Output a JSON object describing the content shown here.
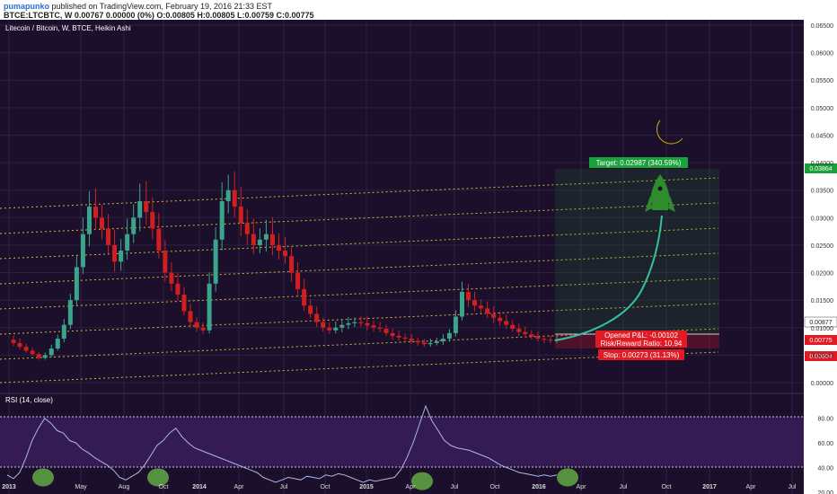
{
  "header": {
    "author": "pumapunko",
    "published": "published on TradingView.com, February 19, 2016 21:33 EST",
    "ohlc_line": "BTCE:LTCBTC, W  0.00767 0.00000 (0%)  O:0.00805 H:0.00805 L:0.00759 C:0.00775"
  },
  "chart": {
    "symbol_label": "Litecoin / Bitcoin, W, BTCE, Heikin Ashi",
    "rsi_label": "RSI (14, close)",
    "target_label": "Target: 0.02987 (340.59%)",
    "pnl_label": "Opened P&L: -0.00102",
    "rr_label": "Risk/Reward Ratio: 10.94",
    "stop_label": "Stop: 0.00273 (31.13%)",
    "price_tags": [
      "0.03864",
      "0.00877",
      "0.00775",
      "0.00604"
    ],
    "moon_icon": "crescent-moon-icon",
    "rocket_icon": "rocket-icon"
  },
  "colors": {
    "bg": "#1c0f2b",
    "up": "#3aa58a",
    "down": "#d11f1f",
    "channel": "#d4b83a",
    "target": "#1aa13c",
    "stop": "#e01b24",
    "arrow": "#35c0a0",
    "moon": "#f2e500",
    "rocket": "#2e8b2e"
  },
  "chart_data": [
    {
      "type": "candlestick",
      "title": "Litecoin / Bitcoin, W, BTCE, Heikin Ashi",
      "x_ticks": [
        "2013",
        "May",
        "Aug",
        "Oct",
        "2014",
        "Apr",
        "Jul",
        "Oct",
        "2015",
        "Apr",
        "Jul",
        "Oct",
        "2016",
        "Apr",
        "Jul",
        "Oct",
        "2017",
        "Apr",
        "Jul"
      ],
      "y_ticks": [
        0.065,
        0.06,
        0.055,
        0.05,
        0.045,
        0.04,
        0.035,
        0.03,
        0.025,
        0.02,
        0.015,
        0.01,
        0.005,
        0.0
      ],
      "ylim": [
        0,
        0.065
      ],
      "close_path": [
        0.0078,
        0.0072,
        0.0065,
        0.0058,
        0.0052,
        0.0045,
        0.005,
        0.0062,
        0.008,
        0.0105,
        0.015,
        0.021,
        0.027,
        0.032,
        0.03,
        0.028,
        0.025,
        0.022,
        0.024,
        0.027,
        0.03,
        0.033,
        0.031,
        0.028,
        0.024,
        0.02,
        0.018,
        0.016,
        0.013,
        0.011,
        0.01,
        0.0095,
        0.018,
        0.026,
        0.033,
        0.035,
        0.032,
        0.029,
        0.027,
        0.025,
        0.026,
        0.027,
        0.025,
        0.024,
        0.023,
        0.02,
        0.017,
        0.014,
        0.0125,
        0.011,
        0.01,
        0.0095,
        0.01,
        0.0105,
        0.0108,
        0.011,
        0.0108,
        0.0104,
        0.01,
        0.0098,
        0.009,
        0.0085,
        0.0082,
        0.008,
        0.0076,
        0.0073,
        0.007,
        0.0072,
        0.0075,
        0.008,
        0.009,
        0.012,
        0.0165,
        0.015,
        0.014,
        0.0135,
        0.0125,
        0.0118,
        0.0112,
        0.0105,
        0.0098,
        0.0092,
        0.0088,
        0.0084,
        0.008,
        0.0078,
        0.0077,
        0.00775
      ]
    },
    {
      "type": "line",
      "title": "RSI (14, close)",
      "y_ticks": [
        80,
        60,
        40,
        20
      ],
      "ylim": [
        20,
        90
      ],
      "overbought": 70,
      "oversold": 30,
      "values": [
        34,
        31,
        36,
        48,
        62,
        72,
        80,
        76,
        70,
        68,
        62,
        60,
        55,
        52,
        48,
        45,
        42,
        38,
        32,
        30,
        33,
        36,
        42,
        50,
        58,
        62,
        68,
        72,
        65,
        60,
        56,
        54,
        52,
        50,
        48,
        46,
        44,
        42,
        40,
        38,
        36,
        32,
        30,
        28,
        30,
        32,
        31,
        30,
        33,
        32,
        31,
        34,
        33,
        35,
        34,
        32,
        30,
        28,
        30,
        29,
        30,
        31,
        32,
        38,
        48,
        60,
        75,
        90,
        78,
        70,
        62,
        58,
        56,
        55,
        54,
        52,
        50,
        48,
        45,
        42,
        40,
        38,
        36,
        35,
        34,
        33,
        34,
        33,
        34
      ]
    }
  ]
}
